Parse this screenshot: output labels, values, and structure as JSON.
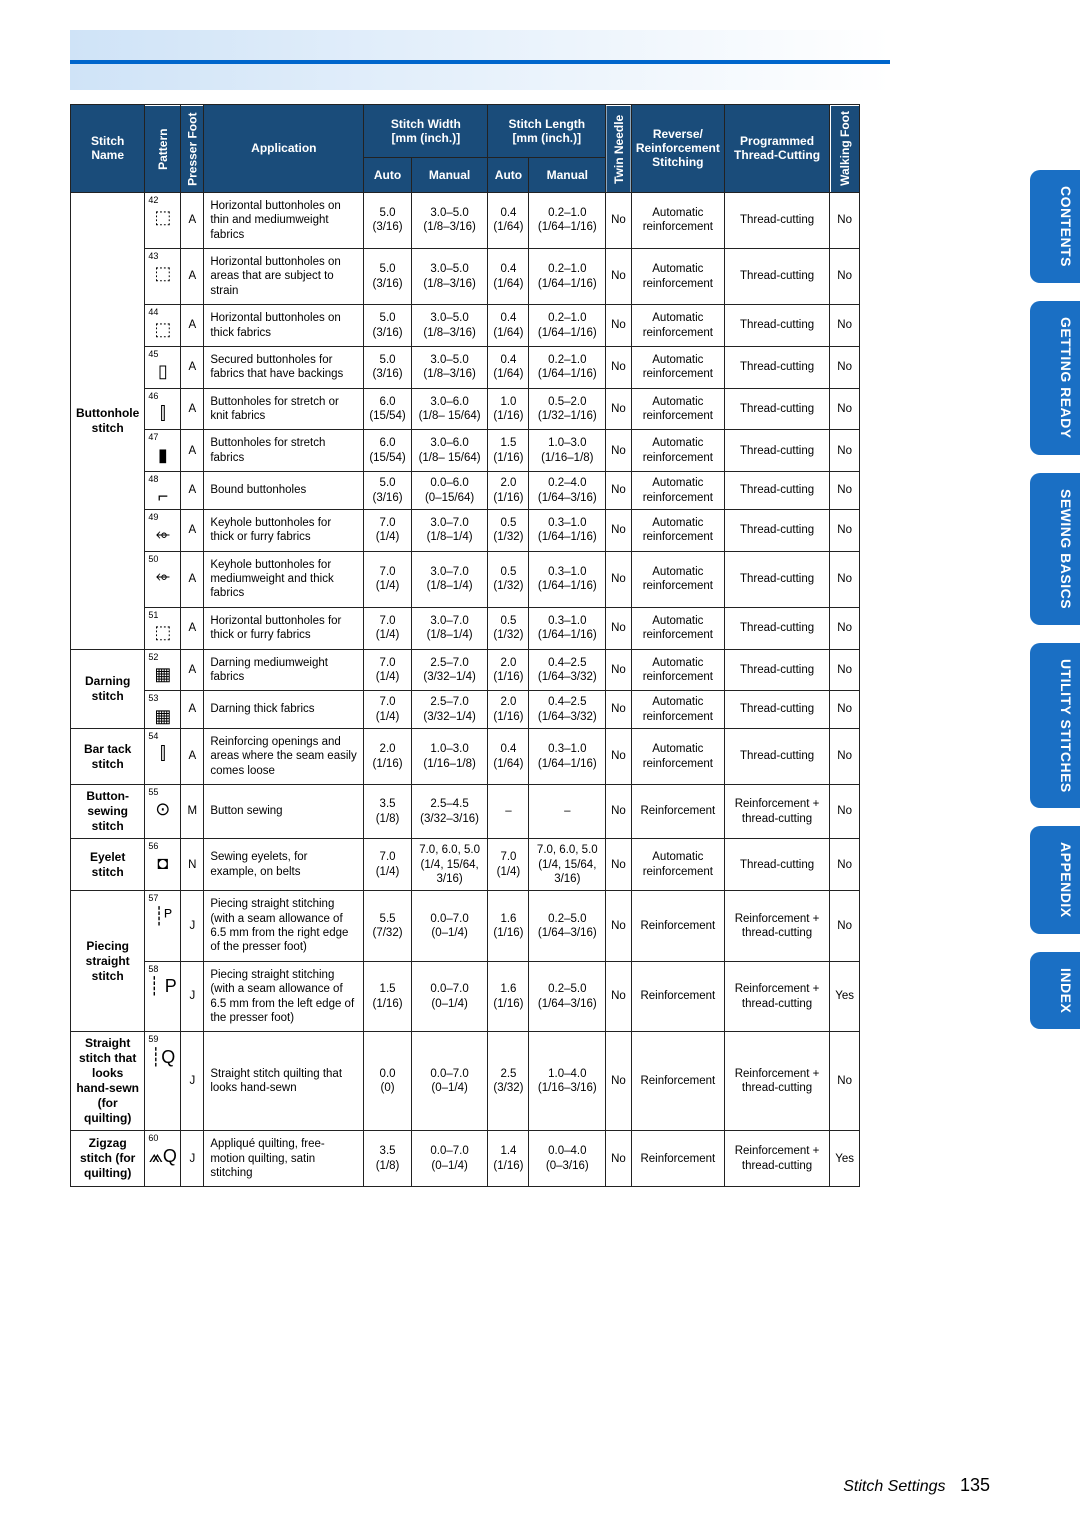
{
  "page": {
    "section": "Stitch Settings",
    "number": "135"
  },
  "tabs": [
    "CONTENTS",
    "GETTING READY",
    "SEWING BASICS",
    "UTILITY STITCHES",
    "APPENDIX",
    "INDEX"
  ],
  "headers": {
    "stitchName": "Stitch Name",
    "pattern": "Pattern",
    "presserFoot": "Presser Foot",
    "application": "Application",
    "stitchWidth": "Stitch Width\n[mm (inch.)]",
    "stitchLength": "Stitch Length\n[mm (inch.)]",
    "auto": "Auto",
    "manual": "Manual",
    "twinNeedle": "Twin Needle",
    "reverse": "Reverse/\nReinforcement\nStitching",
    "programmed": "Programmed\nThread-Cutting",
    "walkingFoot": "Walking Foot"
  },
  "rows": [
    {
      "name": "Buttonhole stitch",
      "nameSpan": 10,
      "pattern": "42",
      "icon": "⬚",
      "foot": "A",
      "app": "Horizontal buttonholes on thin and mediumweight fabrics",
      "wA": "5.0\n(3/16)",
      "wM": "3.0–5.0\n(1/8–3/16)",
      "lA": "0.4\n(1/64)",
      "lM": "0.2–1.0\n(1/64–1/16)",
      "twin": "No",
      "rev": "Automatic\nreinforcement",
      "prog": "Thread-cutting",
      "walk": "No"
    },
    {
      "pattern": "43",
      "icon": "⬚",
      "foot": "A",
      "app": "Horizontal buttonholes on areas that are subject to strain",
      "wA": "5.0\n(3/16)",
      "wM": "3.0–5.0\n(1/8–3/16)",
      "lA": "0.4\n(1/64)",
      "lM": "0.2–1.0\n(1/64–1/16)",
      "twin": "No",
      "rev": "Automatic\nreinforcement",
      "prog": "Thread-cutting",
      "walk": "No"
    },
    {
      "pattern": "44",
      "icon": "⬚",
      "foot": "A",
      "app": "Horizontal buttonholes on thick fabrics",
      "wA": "5.0\n(3/16)",
      "wM": "3.0–5.0\n(1/8–3/16)",
      "lA": "0.4\n(1/64)",
      "lM": "0.2–1.0\n(1/64–1/16)",
      "twin": "No",
      "rev": "Automatic\nreinforcement",
      "prog": "Thread-cutting",
      "walk": "No"
    },
    {
      "pattern": "45",
      "icon": "▯",
      "foot": "A",
      "app": "Secured buttonholes for fabrics that have backings",
      "wA": "5.0\n(3/16)",
      "wM": "3.0–5.0\n(1/8–3/16)",
      "lA": "0.4\n(1/64)",
      "lM": "0.2–1.0\n(1/64–1/16)",
      "twin": "No",
      "rev": "Automatic\nreinforcement",
      "prog": "Thread-cutting",
      "walk": "No"
    },
    {
      "pattern": "46",
      "icon": "⫿",
      "foot": "A",
      "app": "Buttonholes for stretch or knit fabrics",
      "wA": "6.0\n(15/54)",
      "wM": "3.0–6.0\n(1/8– 15/64)",
      "lA": "1.0\n(1/16)",
      "lM": "0.5–2.0\n(1/32–1/16)",
      "twin": "No",
      "rev": "Automatic\nreinforcement",
      "prog": "Thread-cutting",
      "walk": "No"
    },
    {
      "pattern": "47",
      "icon": "▮",
      "foot": "A",
      "app": "Buttonholes for stretch fabrics",
      "wA": "6.0\n(15/54)",
      "wM": "3.0–6.0\n(1/8– 15/64)",
      "lA": "1.5\n(1/16)",
      "lM": "1.0–3.0\n(1/16–1/8)",
      "twin": "No",
      "rev": "Automatic\nreinforcement",
      "prog": "Thread-cutting",
      "walk": "No"
    },
    {
      "pattern": "48",
      "icon": "⌐",
      "foot": "A",
      "app": "Bound buttonholes",
      "wA": "5.0\n(3/16)",
      "wM": "0.0–6.0\n(0–15/64)",
      "lA": "2.0\n(1/16)",
      "lM": "0.2–4.0\n(1/64–3/16)",
      "twin": "No",
      "rev": "Automatic\nreinforcement",
      "prog": "Thread-cutting",
      "walk": "No"
    },
    {
      "pattern": "49",
      "icon": "⬰",
      "foot": "A",
      "app": "Keyhole buttonholes for thick or furry fabrics",
      "wA": "7.0\n(1/4)",
      "wM": "3.0–7.0\n(1/8–1/4)",
      "lA": "0.5\n(1/32)",
      "lM": "0.3–1.0\n(1/64–1/16)",
      "twin": "No",
      "rev": "Automatic\nreinforcement",
      "prog": "Thread-cutting",
      "walk": "No"
    },
    {
      "pattern": "50",
      "icon": "⬰",
      "foot": "A",
      "app": "Keyhole buttonholes for mediumweight and thick fabrics",
      "wA": "7.0\n(1/4)",
      "wM": "3.0–7.0\n(1/8–1/4)",
      "lA": "0.5\n(1/32)",
      "lM": "0.3–1.0\n(1/64–1/16)",
      "twin": "No",
      "rev": "Automatic\nreinforcement",
      "prog": "Thread-cutting",
      "walk": "No"
    },
    {
      "pattern": "51",
      "icon": "⬚",
      "foot": "A",
      "app": "Horizontal buttonholes for thick or furry fabrics",
      "wA": "7.0\n(1/4)",
      "wM": "3.0–7.0\n(1/8–1/4)",
      "lA": "0.5\n(1/32)",
      "lM": "0.3–1.0\n(1/64–1/16)",
      "twin": "No",
      "rev": "Automatic\nreinforcement",
      "prog": "Thread-cutting",
      "walk": "No"
    },
    {
      "name": "Darning stitch",
      "nameSpan": 2,
      "pattern": "52",
      "icon": "▦",
      "foot": "A",
      "app": "Darning mediumweight fabrics",
      "wA": "7.0\n(1/4)",
      "wM": "2.5–7.0\n(3/32–1/4)",
      "lA": "2.0\n(1/16)",
      "lM": "0.4–2.5\n(1/64–3/32)",
      "twin": "No",
      "rev": "Automatic\nreinforcement",
      "prog": "Thread-cutting",
      "walk": "No"
    },
    {
      "pattern": "53",
      "icon": "▦",
      "foot": "A",
      "app": "Darning thick fabrics",
      "wA": "7.0\n(1/4)",
      "wM": "2.5–7.0\n(3/32–1/4)",
      "lA": "2.0\n(1/16)",
      "lM": "0.4–2.5\n(1/64–3/32)",
      "twin": "No",
      "rev": "Automatic\nreinforcement",
      "prog": "Thread-cutting",
      "walk": "No"
    },
    {
      "name": "Bar tack stitch",
      "nameSpan": 1,
      "pattern": "54",
      "icon": "⫿",
      "foot": "A",
      "app": "Reinforcing openings and areas where the seam easily comes loose",
      "wA": "2.0\n(1/16)",
      "wM": "1.0–3.0\n(1/16–1/8)",
      "lA": "0.4\n(1/64)",
      "lM": "0.3–1.0\n(1/64–1/16)",
      "twin": "No",
      "rev": "Automatic\nreinforcement",
      "prog": "Thread-cutting",
      "walk": "No"
    },
    {
      "name": "Button-sewing stitch",
      "nameSpan": 1,
      "pattern": "55",
      "icon": "⊙",
      "foot": "M",
      "app": "Button sewing",
      "wA": "3.5\n(1/8)",
      "wM": "2.5–4.5\n(3/32–3/16)",
      "lA": "–",
      "lM": "–",
      "twin": "No",
      "rev": "Reinforcement",
      "prog": "Reinforcement + thread-cutting",
      "walk": "No"
    },
    {
      "name": "Eyelet stitch",
      "nameSpan": 1,
      "pattern": "56",
      "icon": "◘",
      "foot": "N",
      "app": "Sewing eyelets, for example, on belts",
      "wA": "7.0\n(1/4)",
      "wM": "7.0, 6.0, 5.0 (1/4, 15/64, 3/16)",
      "lA": "7.0\n(1/4)",
      "lM": "7.0, 6.0, 5.0 (1/4, 15/64, 3/16)",
      "twin": "No",
      "rev": "Automatic\nreinforcement",
      "prog": "Thread-cutting",
      "walk": "No"
    },
    {
      "name": "Piecing straight stitch",
      "nameSpan": 2,
      "pattern": "57",
      "icon": "┊ᴾ",
      "foot": "J",
      "app": "Piecing straight stitching (with a seam allowance of 6.5 mm from the right edge of the presser foot)",
      "wA": "5.5\n(7/32)",
      "wM": "0.0–7.0\n(0–1/4)",
      "lA": "1.6\n(1/16)",
      "lM": "0.2–5.0\n(1/64–3/16)",
      "twin": "No",
      "rev": "Reinforcement",
      "prog": "Reinforcement + thread-cutting",
      "walk": "No"
    },
    {
      "pattern": "58",
      "icon": "┊ P",
      "foot": "J",
      "app": "Piecing straight stitching (with a seam allowance of 6.5 mm from the left edge of the presser foot)",
      "wA": "1.5\n(1/16)",
      "wM": "0.0–7.0\n(0–1/4)",
      "lA": "1.6\n(1/16)",
      "lM": "0.2–5.0\n(1/64–3/16)",
      "twin": "No",
      "rev": "Reinforcement",
      "prog": "Reinforcement + thread-cutting",
      "walk": "Yes"
    },
    {
      "name": "Straight stitch that looks hand-sewn (for quilting)",
      "nameSpan": 1,
      "pattern": "59",
      "icon": "┊Q",
      "foot": "J",
      "app": "Straight stitch quilting that looks hand-sewn",
      "wA": "0.0\n(0)",
      "wM": "0.0–7.0\n(0–1/4)",
      "lA": "2.5\n(3/32)",
      "lM": "1.0–4.0\n(1/16–3/16)",
      "twin": "No",
      "rev": "Reinforcement",
      "prog": "Reinforcement + thread-cutting",
      "walk": "No"
    },
    {
      "name": "Zigzag stitch (for quilting)",
      "nameSpan": 1,
      "pattern": "60",
      "icon": "⩕Q",
      "foot": "J",
      "app": "Appliqué quilting, free-motion quilting, satin stitching",
      "wA": "3.5\n(1/8)",
      "wM": "0.0–7.0\n(0–1/4)",
      "lA": "1.4\n(1/16)",
      "lM": "0.0–4.0\n(0–3/16)",
      "twin": "No",
      "rev": "Reinforcement",
      "prog": "Reinforcement + thread-cutting",
      "walk": "Yes"
    }
  ]
}
